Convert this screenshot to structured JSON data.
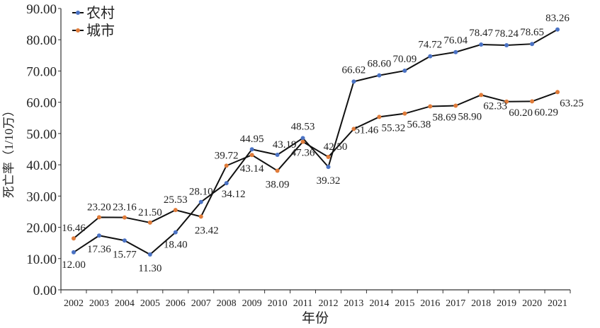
{
  "chart_data": {
    "type": "line",
    "title": "",
    "xlabel": "年份",
    "ylabel": "死亡率（1/10万）",
    "ylim": [
      0,
      90
    ],
    "yticks": [
      "0.00",
      "10.00",
      "20.00",
      "30.00",
      "40.00",
      "50.00",
      "60.00",
      "70.00",
      "80.00",
      "90.00"
    ],
    "x": [
      "2002",
      "2003",
      "2004",
      "2005",
      "2006",
      "2007",
      "2008",
      "2009",
      "2010",
      "2011",
      "2012",
      "2013",
      "2014",
      "2015",
      "2016",
      "2017",
      "2018",
      "2019",
      "2020",
      "2021"
    ],
    "legend_position": "top-left",
    "grid": false,
    "series": [
      {
        "name": "农村",
        "marker_color": "#4a72c4",
        "values": [
          12.0,
          17.36,
          15.77,
          11.3,
          18.4,
          28.1,
          34.12,
          44.95,
          43.19,
          48.53,
          39.32,
          66.62,
          68.6,
          70.09,
          74.72,
          76.04,
          78.47,
          78.24,
          78.65,
          83.26
        ],
        "labels": [
          "12.00",
          "17.36",
          "15.77",
          "11.30",
          "18.40",
          "28.10",
          "34.12",
          "44.95",
          "43.19",
          "48.53",
          "39.32",
          "66.62",
          "68.60",
          "70.09",
          "74.72",
          "76.04",
          "78.47",
          "78.24",
          "78.65",
          "83.26"
        ]
      },
      {
        "name": "城市",
        "marker_color": "#e07b39",
        "values": [
          16.46,
          23.2,
          23.16,
          21.5,
          25.53,
          23.42,
          39.72,
          43.14,
          38.09,
          47.36,
          42.5,
          51.46,
          55.32,
          56.38,
          58.69,
          58.9,
          62.33,
          60.2,
          60.29,
          63.25
        ],
        "labels": [
          "16.46",
          "23.20",
          "23.16",
          "21.50",
          "25.53",
          "23.42",
          "39.72",
          "43.14",
          "38.09",
          "47.36",
          "42.50",
          "51.46",
          "55.32",
          "56.38",
          "58.69",
          "58.90",
          "62.33",
          "60.20",
          "60.29",
          "63.25"
        ]
      }
    ]
  }
}
